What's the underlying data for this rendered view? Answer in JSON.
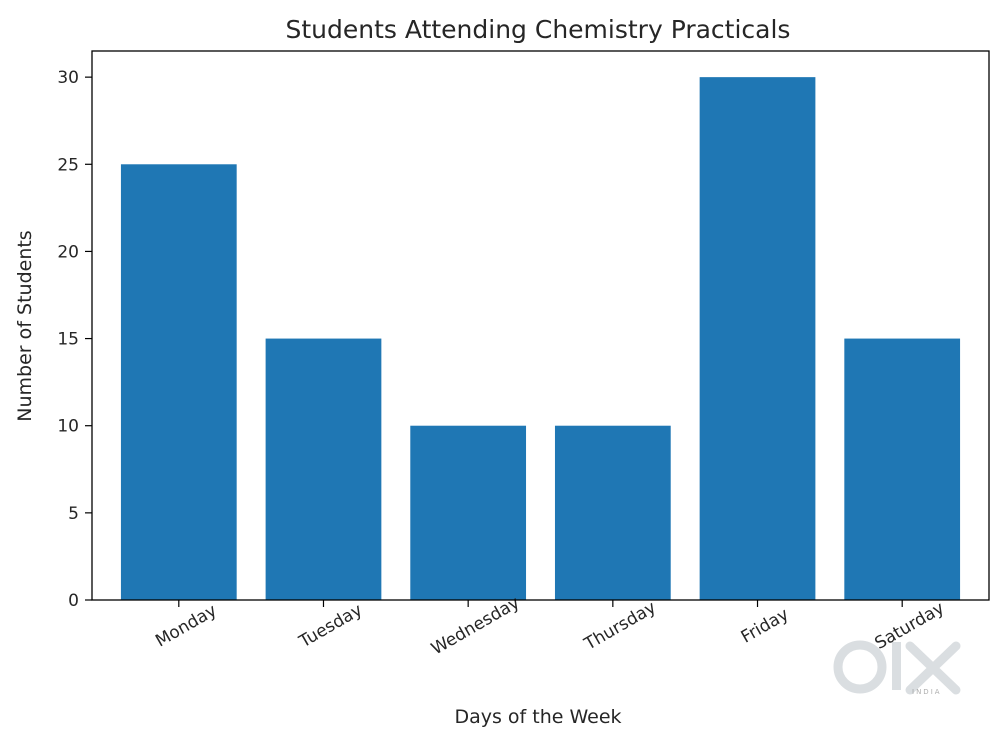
{
  "chart_data": {
    "type": "bar",
    "title": "Students Attending Chemistry Practicals",
    "xlabel": "Days of the Week",
    "ylabel": "Number of Students",
    "categories": [
      "Monday",
      "Tuesday",
      "Wednesday",
      "Thursday",
      "Friday",
      "Saturday"
    ],
    "values": [
      25,
      15,
      10,
      10,
      30,
      15
    ],
    "ylim": [
      0,
      31.5
    ],
    "yticks": [
      "0",
      "5",
      "10",
      "15",
      "20",
      "25",
      "30"
    ],
    "bar_color": "#1f77b4",
    "grid": false,
    "legend": "none",
    "xtick_rotation": "30"
  },
  "watermark": {
    "logo": "OLX",
    "sub": "INDIA"
  }
}
